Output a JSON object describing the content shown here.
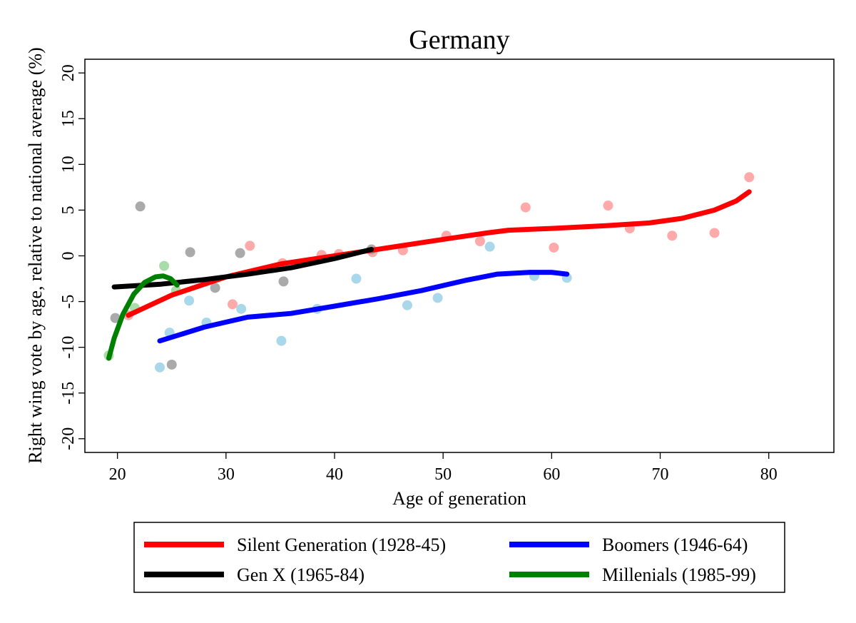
{
  "chart_data": {
    "type": "scatter",
    "title": "Germany",
    "xlabel": "Age of generation",
    "ylabel": "Right wing vote by age, relative to national average (%)",
    "xlim": [
      17,
      86
    ],
    "ylim": [
      -21.5,
      21.5
    ],
    "xticks": [
      20,
      30,
      40,
      50,
      60,
      70,
      80
    ],
    "yticks": [
      20,
      15,
      10,
      5,
      0,
      -5,
      -10,
      -15,
      -20
    ],
    "grid": false,
    "legend_position": "bottom",
    "series": [
      {
        "name": "Silent Generation (1928-45)",
        "color": "#ff0000",
        "point_color": "#ffaaaa",
        "points": [
          [
            21,
            -6.5
          ],
          [
            30.6,
            -5.3
          ],
          [
            32.2,
            1.1
          ],
          [
            35.2,
            -0.8
          ],
          [
            38.8,
            0.1
          ],
          [
            40.4,
            0.2
          ],
          [
            43.5,
            0.4
          ],
          [
            46.3,
            0.6
          ],
          [
            50.3,
            2.2
          ],
          [
            53.4,
            1.6
          ],
          [
            57.6,
            5.3
          ],
          [
            60.2,
            0.9
          ],
          [
            65.2,
            5.5
          ],
          [
            67.2,
            3
          ],
          [
            71.1,
            2.2
          ],
          [
            75,
            2.5
          ],
          [
            78.2,
            8.6
          ]
        ],
        "fit": [
          [
            21,
            -6.5
          ],
          [
            25,
            -4.3
          ],
          [
            30,
            -2.3
          ],
          [
            35,
            -0.9
          ],
          [
            40,
            0
          ],
          [
            45,
            0.9
          ],
          [
            50,
            1.8
          ],
          [
            54,
            2.5
          ],
          [
            56,
            2.8
          ],
          [
            60,
            3
          ],
          [
            65,
            3.3
          ],
          [
            69,
            3.6
          ],
          [
            72,
            4.1
          ],
          [
            75,
            5
          ],
          [
            77,
            6
          ],
          [
            78.2,
            7
          ]
        ]
      },
      {
        "name": "Boomers (1946-64)",
        "color": "#0000ff",
        "point_color": "#a9d8ea",
        "points": [
          [
            23.9,
            -12.2
          ],
          [
            24.8,
            -8.4
          ],
          [
            26.6,
            -4.9
          ],
          [
            28.2,
            -7.3
          ],
          [
            31.4,
            -5.8
          ],
          [
            35.1,
            -9.3
          ],
          [
            38.4,
            -5.8
          ],
          [
            42,
            -2.5
          ],
          [
            46.7,
            -5.4
          ],
          [
            49.5,
            -4.6
          ],
          [
            54.3,
            1
          ],
          [
            58.4,
            -2.2
          ],
          [
            61.4,
            -2.4
          ]
        ],
        "fit": [
          [
            23.9,
            -9.3
          ],
          [
            28,
            -7.8
          ],
          [
            32,
            -6.7
          ],
          [
            36,
            -6.3
          ],
          [
            40,
            -5.5
          ],
          [
            44,
            -4.7
          ],
          [
            48,
            -3.8
          ],
          [
            52,
            -2.7
          ],
          [
            55,
            -2
          ],
          [
            58,
            -1.8
          ],
          [
            60,
            -1.8
          ],
          [
            61.4,
            -2
          ]
        ]
      },
      {
        "name": "Gen X (1965-84)",
        "color": "#000000",
        "point_color": "#aaaaaa",
        "points": [
          [
            19.8,
            -6.8
          ],
          [
            22.1,
            5.4
          ],
          [
            25,
            -11.9
          ],
          [
            26.7,
            0.4
          ],
          [
            29,
            -3.5
          ],
          [
            31.3,
            0.3
          ],
          [
            35.3,
            -2.8
          ],
          [
            43.4,
            0.7
          ]
        ],
        "fit": [
          [
            19.7,
            -3.4
          ],
          [
            24,
            -3.1
          ],
          [
            28,
            -2.6
          ],
          [
            32,
            -2
          ],
          [
            36,
            -1.3
          ],
          [
            40,
            -0.3
          ],
          [
            43.4,
            0.7
          ]
        ]
      },
      {
        "name": "Millenials (1985-99)",
        "color": "#008000",
        "point_color": "#a8dca8",
        "points": [
          [
            19.2,
            -10.9
          ],
          [
            21.6,
            -5.7
          ],
          [
            24.3,
            -1.1
          ],
          [
            25.4,
            -3.8
          ]
        ],
        "fit": [
          [
            19.2,
            -11.2
          ],
          [
            19.7,
            -9
          ],
          [
            20.5,
            -6.4
          ],
          [
            21.5,
            -4.2
          ],
          [
            22.5,
            -2.9
          ],
          [
            23.5,
            -2.3
          ],
          [
            24.2,
            -2.2
          ],
          [
            24.9,
            -2.5
          ],
          [
            25.5,
            -3.2
          ]
        ]
      }
    ],
    "legend_order": [
      0,
      1,
      2,
      3
    ]
  }
}
